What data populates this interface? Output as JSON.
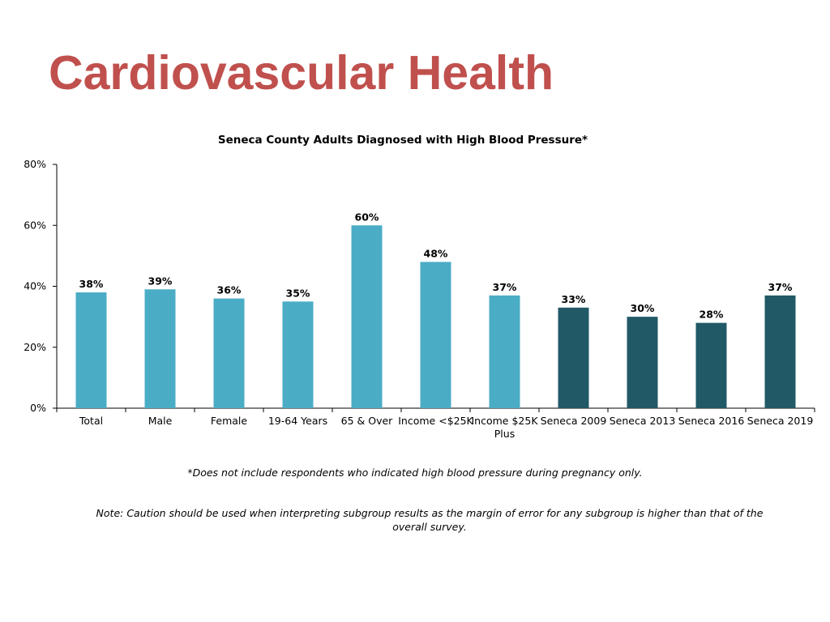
{
  "page": {
    "title": "Cardiovascular Health",
    "footnote": "*Does not include respondents who indicated high blood pressure during pregnancy only.",
    "note": "Note: Caution should be used when interpreting subgroup results as the margin of error for any subgroup is higher than that of the overall survey."
  },
  "chart_data": {
    "type": "bar",
    "title": "Seneca County Adults Diagnosed with High Blood Pressure*",
    "xlabel": "",
    "ylabel": "",
    "ylim": [
      0,
      80
    ],
    "yticks": [
      "0%",
      "20%",
      "40%",
      "60%",
      "80%"
    ],
    "ytick_values": [
      0,
      20,
      40,
      60,
      80
    ],
    "grid": false,
    "categories": [
      [
        "Total"
      ],
      [
        "Male"
      ],
      [
        "Female"
      ],
      [
        "19-64 Years"
      ],
      [
        "65 & Over"
      ],
      [
        "Income <$25K"
      ],
      [
        "Income $25K",
        "Plus"
      ],
      [
        "Seneca 2009"
      ],
      [
        "Seneca 2013"
      ],
      [
        "Seneca 2016"
      ],
      [
        "Seneca 2019"
      ]
    ],
    "values": [
      38,
      39,
      36,
      35,
      60,
      48,
      37,
      33,
      30,
      28,
      37
    ],
    "data_labels": [
      "38%",
      "39%",
      "36%",
      "35%",
      "60%",
      "48%",
      "37%",
      "33%",
      "30%",
      "28%",
      "37%"
    ],
    "bar_colors": [
      "#4bacc6",
      "#4bacc6",
      "#4bacc6",
      "#4bacc6",
      "#4bacc6",
      "#4bacc6",
      "#4bacc6",
      "#215967",
      "#215967",
      "#215967",
      "#215967"
    ]
  },
  "colors": {
    "title": "#c0504d",
    "bar_subgroup": "#4bacc6",
    "bar_trend": "#215967",
    "axis": "#000000"
  }
}
